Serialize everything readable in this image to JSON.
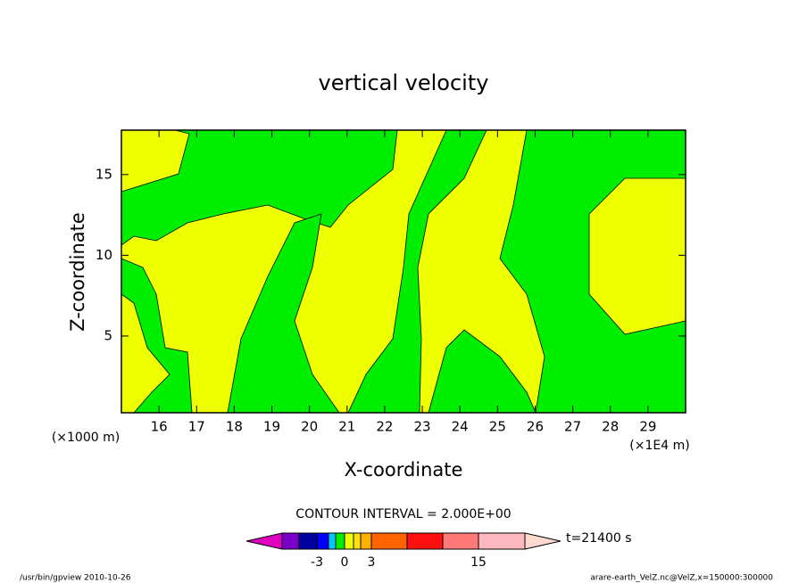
{
  "chart_data": {
    "type": "contour",
    "title": "vertical velocity",
    "x_label": "X-coordinate",
    "y_label": "Z-coordinate",
    "x_unit": "(×1E4 m)",
    "y_unit": "(×1000 m)",
    "xlim": [
      15,
      30
    ],
    "ylim": [
      0.25,
      17.75
    ],
    "xticks": [
      16,
      17,
      18,
      19,
      20,
      21,
      22,
      23,
      24,
      25,
      26,
      27,
      28,
      29
    ],
    "yticks": [
      5,
      10,
      15
    ],
    "contour_interval": "CONTOUR INTERVAL = 2.000E+00",
    "time": "t=21400 s",
    "colorbar": {
      "colors": [
        "#e000c0",
        "#7800c8",
        "#0000a0",
        "#0000ff",
        "#00c8ff",
        "#00ee00",
        "#eeff00",
        "#ffe000",
        "#ffb000",
        "#ff6400",
        "#ff1010",
        "#ff7878",
        "#ffb8c0",
        "#ffd8d0"
      ],
      "labels": [
        -3,
        0,
        3,
        15
      ]
    },
    "footer_left": "/usr/bin/gpview  2010-10-26",
    "footer_right": "arare-earth_VelZ.nc@VelZ,x=150000:300000"
  }
}
